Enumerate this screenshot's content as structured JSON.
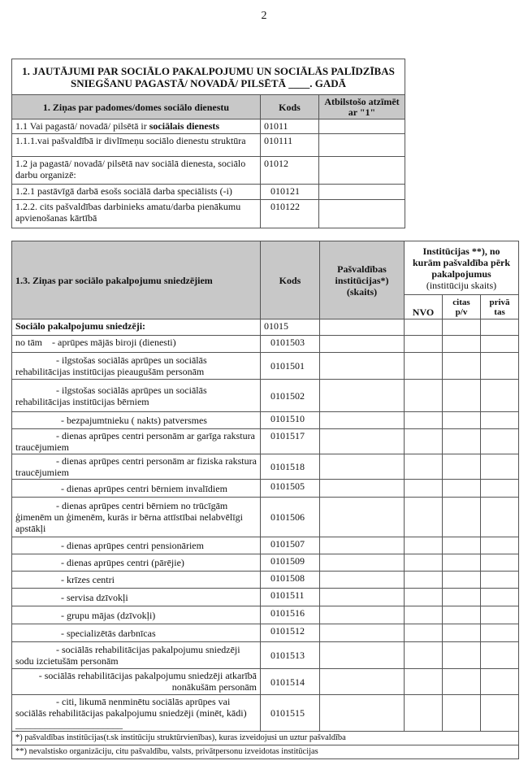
{
  "page_number": "2",
  "table1": {
    "title": "1. JAUTĀJUMI PAR SOCIĀLO PAKALPOJUMU UN SOCIĀLĀS PALĪDZĪBAS SNIEGŠANU PAGASTĀ/ NOVADĀ/ PILSĒTĀ ____. GADĀ",
    "headers": [
      "1. Ziņas par padomes/domes sociālo dienestu",
      "Kods",
      "Atbilstošo atzīmēt ar \"1\""
    ],
    "rows": [
      {
        "label_pre": "1.1 Vai pagastā/ novadā/ pilsētā ir ",
        "label_bold": "sociālais dienests",
        "code": "01011"
      },
      {
        "label": "1.1.1.vai pašvaldībā ir divlīmeņu  sociālo dienestu struktūra",
        "code": "010111"
      },
      {
        "label": "1.2 ja pagastā/ novadā/ pilsētā nav sociālā dienesta, sociālo darbu organizē:",
        "code": "01012"
      },
      {
        "label": "1.2.1 pastāvīgā darbā esošs sociālā darba speciālists (-i)",
        "code": "010121"
      },
      {
        "label": "1.2.2. cits pašvaldības  darbinieks amatu/darba pienākumu apvienošanas kārtībā",
        "code": "010122"
      }
    ]
  },
  "table2": {
    "headers": {
      "col1": "1.3. Ziņas par sociālo  pakalpojumu sniedzējiem",
      "col2": "Kods",
      "col3": "Pašvaldības institūcijas*) (skaits)",
      "group": "Institūcijas **), no kurām pašvaldība pērk pakalpojumus",
      "group_sub": "(institūciju skaits)",
      "sub": [
        "NVO",
        "citas p/v",
        "privā tas"
      ]
    },
    "rows": [
      {
        "label": "Sociālo  pakalpojumu sniedzēji:",
        "code": "01015"
      },
      {
        "label": "no tām    - aprūpes mājās biroji (dienesti)",
        "code": "0101503"
      },
      {
        "label": "- ilgstošas sociālās aprūpes un sociālās rehabilitācijas institūcijas pieaugušām personām",
        "code": "0101501"
      },
      {
        "label": "- ilgstošas sociālās aprūpes un sociālās rehabilitācijas institūcijas bērniem",
        "code": "0101502"
      },
      {
        "label": "- bezpajumtnieku  ( nakts) patversmes",
        "code": "0101510"
      },
      {
        "label": "- dienas aprūpes centri personām ar garīga rakstura   traucējumiem",
        "code": "0101517"
      },
      {
        "label": "- dienas aprūpes centri personām ar fiziska rakstura   traucējumiem",
        "code": "0101518"
      },
      {
        "label": "- dienas aprūpes centri bērniem invalīdiem",
        "code": "0101505"
      },
      {
        "label": "- dienas aprūpes centri bērniem no trūcīgām ģimenēm un ģimenēm, kurās ir bērna attīstībai nelabvēlīgi apstākļi",
        "code": "0101506"
      },
      {
        "label": "- dienas aprūpes centri pensionāriem",
        "code": "0101507"
      },
      {
        "label": "- dienas aprūpes centri (pārējie)",
        "code": "0101509"
      },
      {
        "label": "- krīzes centri",
        "code": "0101508"
      },
      {
        "label": "- servisa dzīvokļi",
        "code": "0101511"
      },
      {
        "label": "- grupu mājas (dzīvokļi)",
        "code": "0101516"
      },
      {
        "label": "- specializētās darbnīcas",
        "code": "0101512"
      },
      {
        "label": "- sociālās rehabilitācijas pakalpojumu sniedzēji sodu izcietušām personām",
        "code": "0101513"
      },
      {
        "label": "- sociālās rehabilitācijas pakalpojumu sniedzēji atkarībā nonākušām personām",
        "code": "0101514"
      },
      {
        "label": "- citi, likumā nenminētu sociālās aprūpes vai sociālās rehabilitācijas pakalpojumu sniedzēji (minēt, kādi) ______________________",
        "code": "0101515"
      }
    ],
    "footnotes": [
      "*) pašvaldības institūcijas(t.sk institūciju  struktūrvienības), kuras izveidojusi un uztur pašvaldība",
      "**) nevalstisko organizāciju, citu pašvaldību, valsts, privātpersonu izveidotas institūcijas"
    ]
  },
  "colors": {
    "header_bg": "#c8c8c8",
    "border": "#555555"
  }
}
